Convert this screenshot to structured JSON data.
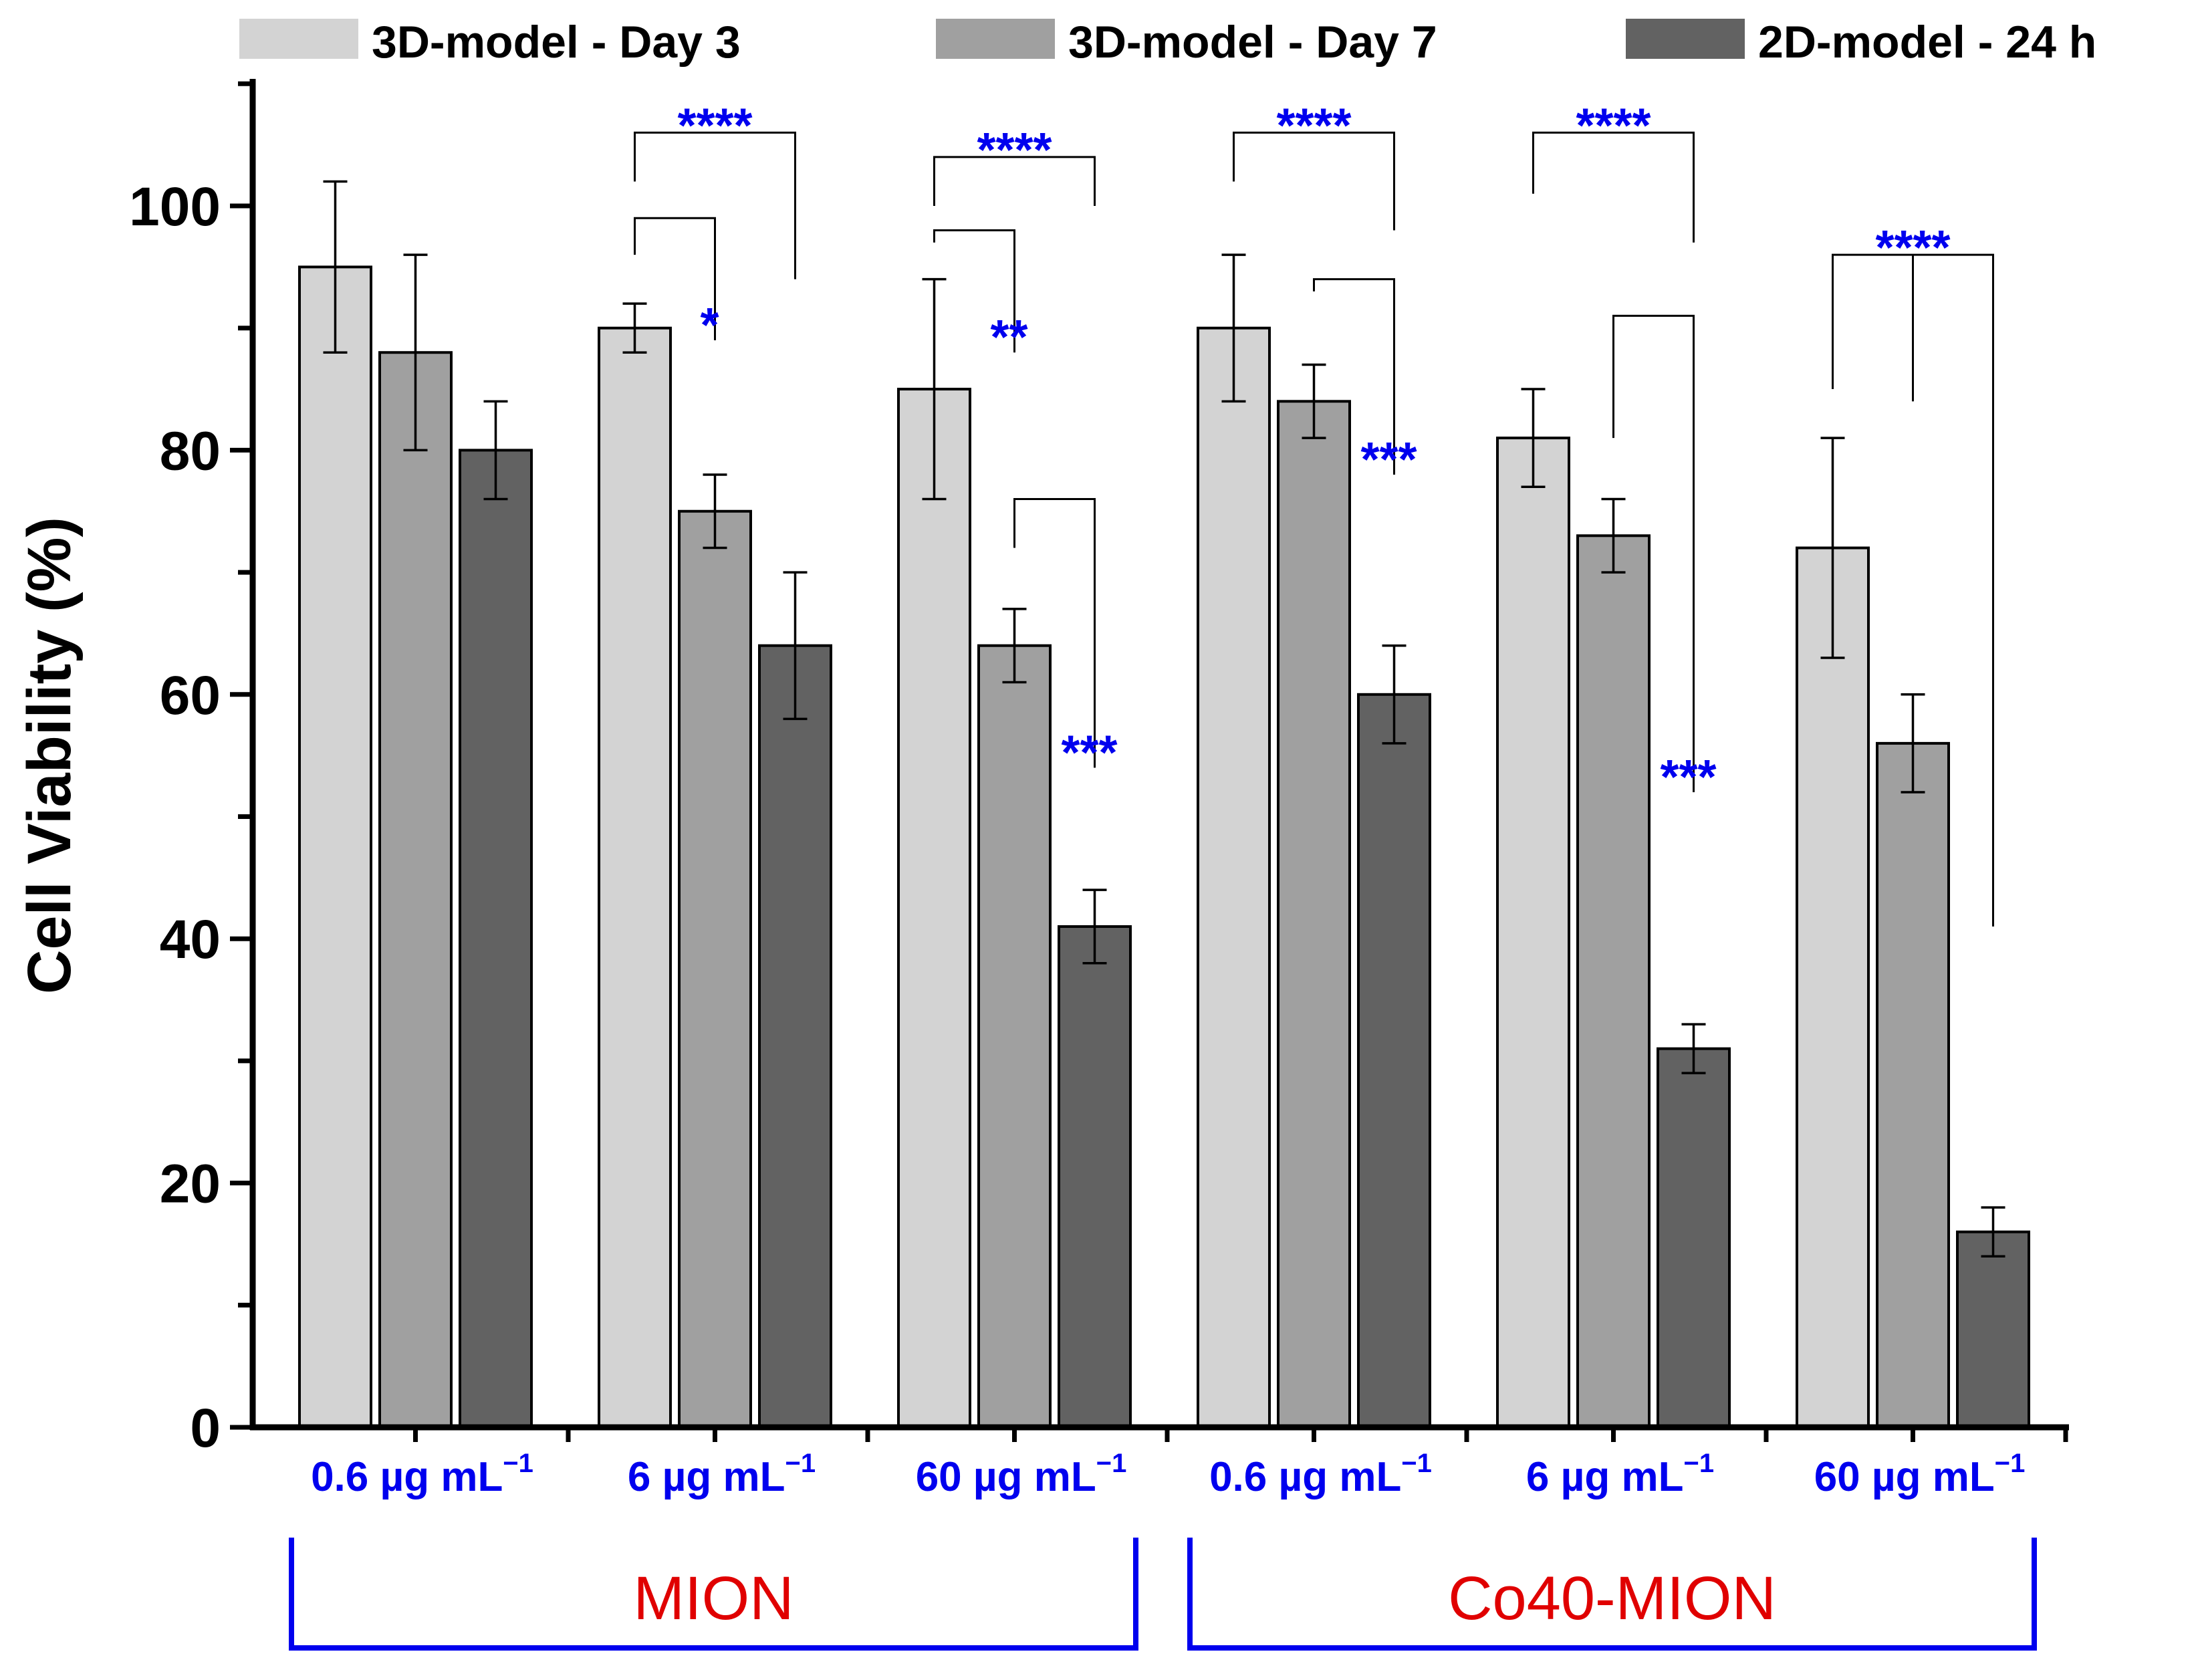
{
  "chart_data": {
    "type": "bar",
    "title": "",
    "xlabel": "",
    "ylabel": "Cell Viability (%)",
    "ylim": [
      0,
      110
    ],
    "yticks": [
      0,
      20,
      40,
      60,
      80,
      100
    ],
    "grid": false,
    "legend_position": "top",
    "categories": [
      "0.6 µg mL",
      "6 µg mL",
      "60 µg mL",
      "0.6 µg mL",
      "6 µg mL",
      "60 µg mL"
    ],
    "category_superscript": "−1",
    "groups": [
      {
        "label": "MION",
        "categories": [
          0,
          1,
          2
        ]
      },
      {
        "label": "Co40-MION",
        "categories": [
          3,
          4,
          5
        ]
      }
    ],
    "series": [
      {
        "name": "3D-model - Day 3",
        "color": "#d3d3d3",
        "values": [
          95,
          90,
          85,
          90,
          81,
          72
        ],
        "errors": [
          7,
          2,
          9,
          6,
          4,
          9
        ]
      },
      {
        "name": "3D-model - Day 7",
        "color": "#a0a0a0",
        "values": [
          88,
          75,
          64,
          84,
          73,
          56
        ],
        "errors": [
          8,
          3,
          3,
          3,
          3,
          4
        ]
      },
      {
        "name": "2D-model - 24 h",
        "color": "#626262",
        "values": [
          80,
          64,
          41,
          60,
          31,
          16
        ],
        "errors": [
          4,
          6,
          3,
          4,
          2,
          2
        ]
      }
    ],
    "significance": [
      {
        "category": 1,
        "from": 0,
        "to": 2,
        "label": "****",
        "top": 106,
        "left_end": 102,
        "right_end": 94
      },
      {
        "category": 1,
        "from": 0,
        "to": 1,
        "label": "*",
        "top": 99,
        "left_end": 96,
        "right_end": 89
      },
      {
        "category": 2,
        "from": 0,
        "to": 2,
        "label": "****",
        "top": 104,
        "left_end": 100,
        "right_end": 100
      },
      {
        "category": 2,
        "from": 0,
        "to": 1,
        "label": "**",
        "top": 98,
        "left_end": 97,
        "right_end": 88
      },
      {
        "category": 2,
        "from": 1,
        "to": 2,
        "label": "***",
        "top": 76,
        "left_end": 72,
        "right_end": 54
      },
      {
        "category": 3,
        "from": 0,
        "to": 2,
        "label": "****",
        "top": 106,
        "left_end": 102,
        "right_end": 98
      },
      {
        "category": 3,
        "from": 1,
        "to": 2,
        "label": "***",
        "top": 94,
        "left_end": 93,
        "right_end": 78
      },
      {
        "category": 4,
        "from": 0,
        "to": 2,
        "label": "****",
        "top": 106,
        "left_end": 101,
        "right_end": 97
      },
      {
        "category": 4,
        "from": 1,
        "to": 2,
        "label": "***",
        "top": 91,
        "left_end": 81,
        "right_end": 52
      },
      {
        "category": 5,
        "from": 0,
        "to": 2,
        "label": "****",
        "top": 96,
        "left_end": 85,
        "right_end": 41,
        "center_from": 1
      }
    ]
  }
}
